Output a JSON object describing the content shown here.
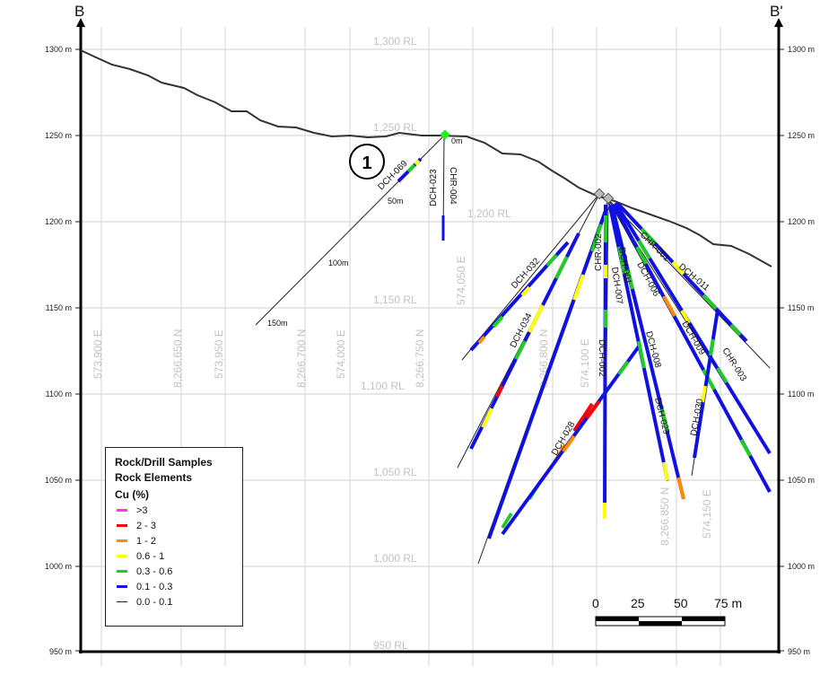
{
  "section": {
    "left_label": "B",
    "right_label": "B'",
    "elevation_labels": [
      "1300 m",
      "1250 m",
      "1200 m",
      "1150 m",
      "1100 m",
      "1050 m",
      "1000 m",
      "950 m"
    ],
    "rl_labels": [
      "1,300 RL",
      "1,250 RL",
      "1,200 RL",
      "1,150 RL",
      "1,100 RL",
      "1,050 RL",
      "1,000 RL",
      "950 RL"
    ],
    "grid_labels": [
      "573,900 E",
      "8,266,650 N",
      "573,950 E",
      "8,266,700 N",
      "574,000 E",
      "8,266,750 N",
      "574,050 E",
      "8,266,800 N",
      "574,100 E",
      "8,266,850 N",
      "574,150 E"
    ],
    "callout": "1",
    "holes": [
      {
        "name": "DCH-069"
      },
      {
        "name": "DCH-023"
      },
      {
        "name": "CHR-004"
      },
      {
        "name": "DCH-032"
      },
      {
        "name": "DCH-034"
      },
      {
        "name": "DCH-028"
      },
      {
        "name": "CHR-002"
      },
      {
        "name": "DCH-002"
      },
      {
        "name": "DCH-001"
      },
      {
        "name": "DCH-006"
      },
      {
        "name": "DCH-008"
      },
      {
        "name": "DCH-009"
      },
      {
        "name": "DCH-011"
      },
      {
        "name": "CHR-001"
      },
      {
        "name": "CHR-003"
      },
      {
        "name": "DCH-030"
      },
      {
        "name": "DCH-029"
      },
      {
        "name": "DCH-007"
      }
    ],
    "depth_labels": [
      "0m",
      "50m",
      "100m",
      "150m"
    ]
  },
  "legend": {
    "title1": "Rock/Drill Samples",
    "title2": "Rock Elements",
    "field": "Cu (%)",
    "items": [
      {
        "label": ">3",
        "color": "#ff33ff"
      },
      {
        "label": "2 - 3",
        "color": "#ff0000"
      },
      {
        "label": "1 - 2",
        "color": "#ff8c00"
      },
      {
        "label": "0.6 - 1",
        "color": "#ffff00"
      },
      {
        "label": "0.3 - 0.6",
        "color": "#22cc22"
      },
      {
        "label": "0.1 - 0.3",
        "color": "#1010e0"
      },
      {
        "label": "0.0 - 0.1",
        "color": "#222222"
      }
    ]
  },
  "scale": {
    "ticks": [
      "0",
      "25",
      "50",
      "75 m"
    ]
  }
}
